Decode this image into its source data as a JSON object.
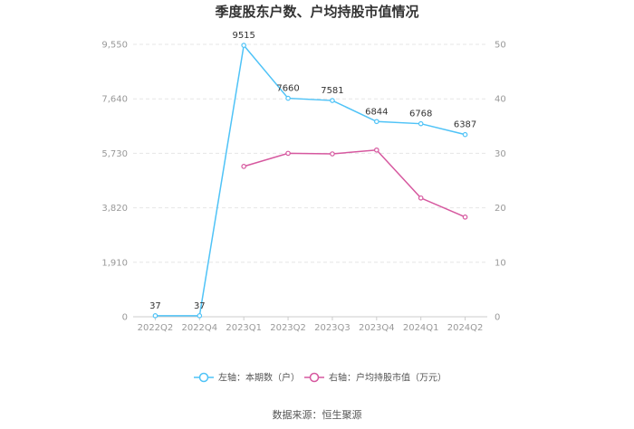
{
  "chart_data": {
    "type": "line",
    "title": "季度股东户数、户均持股市值情况",
    "categories": [
      "2022Q2",
      "2022Q4",
      "2023Q1",
      "2023Q2",
      "2023Q3",
      "2023Q4",
      "2024Q1",
      "2024Q2"
    ],
    "left_axis": {
      "ticks": [
        "0",
        "1,910",
        "3,820",
        "5,730",
        "7,640",
        "9,550"
      ],
      "ylim": [
        0,
        9550
      ]
    },
    "right_axis": {
      "ticks": [
        "0",
        "10",
        "20",
        "30",
        "40",
        "50"
      ],
      "ylim": [
        0,
        50
      ]
    },
    "grid": true,
    "legend_position": "bottom",
    "series": [
      {
        "name": "左轴：本期数（户）",
        "axis": "left",
        "color": "#4fc3f7",
        "values": [
          37,
          37,
          9515,
          7660,
          7581,
          6844,
          6768,
          6387
        ],
        "labels": [
          "37",
          "37",
          "9515",
          "7660",
          "7581",
          "6844",
          "6768",
          "6387"
        ]
      },
      {
        "name": "右轴：户均持股市值（万元）",
        "axis": "right",
        "color": "#d6589f",
        "values": [
          null,
          null,
          27.6,
          30.0,
          29.9,
          30.6,
          21.8,
          18.3
        ]
      }
    ],
    "source": "数据来源：恒生聚源"
  }
}
